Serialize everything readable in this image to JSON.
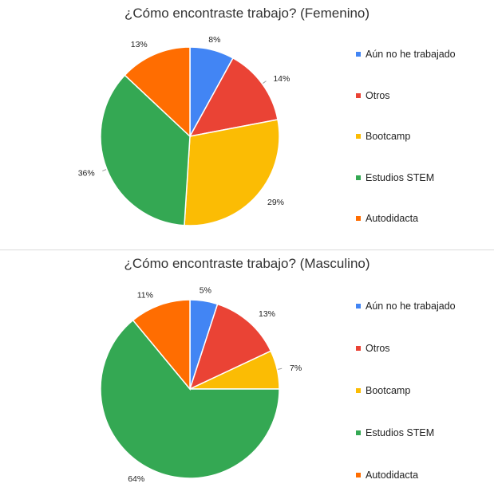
{
  "colors": {
    "aun": "#4285F4",
    "otros": "#EA4335",
    "bootcamp": "#FBBC04",
    "stem": "#34A853",
    "autodidacta": "#FF6D01"
  },
  "chart_data": [
    {
      "type": "pie",
      "title": "¿Cómo encontraste trabajo? (Femenino)",
      "legend_position": "right",
      "categories": [
        "Aún no he trabajado",
        "Otros",
        "Bootcamp",
        "Estudios STEM",
        "Autodidacta"
      ],
      "values": [
        8,
        14,
        29,
        36,
        13
      ],
      "labels": [
        "8%",
        "14%",
        "29%",
        "36%",
        "13%"
      ],
      "colors": [
        "#4285F4",
        "#EA4335",
        "#FBBC04",
        "#34A853",
        "#FF6D01"
      ]
    },
    {
      "type": "pie",
      "title": "¿Cómo encontraste trabajo? (Masculino)",
      "legend_position": "right",
      "categories": [
        "Aún no he trabajado",
        "Otros",
        "Bootcamp",
        "Estudios STEM",
        "Autodidacta"
      ],
      "values": [
        5,
        13,
        7,
        64,
        11
      ],
      "labels": [
        "5%",
        "13%",
        "7%",
        "64%",
        "11%"
      ],
      "colors": [
        "#4285F4",
        "#EA4335",
        "#FBBC04",
        "#34A853",
        "#FF6D01"
      ]
    }
  ]
}
